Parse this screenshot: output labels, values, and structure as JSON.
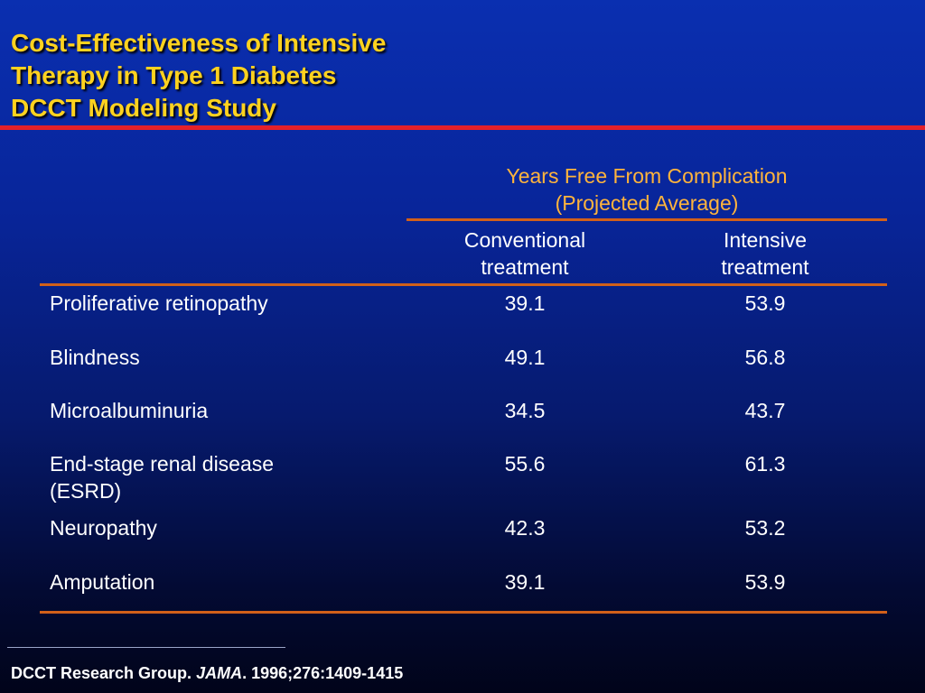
{
  "title": {
    "lines": [
      "Cost-Effectiveness of Intensive",
      "Therapy in Type 1 Diabetes",
      "DCCT Modeling Study"
    ]
  },
  "table": {
    "group_header": {
      "line1": "Years Free From Complication",
      "line2": "(Projected Average)"
    },
    "columns": [
      {
        "line1": "Conventional",
        "line2": "treatment"
      },
      {
        "line1": "Intensive",
        "line2": "treatment"
      }
    ],
    "rows": [
      {
        "label": [
          "Proliferative retinopathy"
        ],
        "values": [
          "39.1",
          "53.9"
        ]
      },
      {
        "label": [
          "Blindness"
        ],
        "values": [
          "49.1",
          "56.8"
        ]
      },
      {
        "label": [
          "Microalbuminuria"
        ],
        "values": [
          "34.5",
          "43.7"
        ]
      },
      {
        "label": [
          "End-stage renal disease",
          "(ESRD)"
        ],
        "values": [
          "55.6",
          "61.3"
        ]
      },
      {
        "label": [
          "Neuropathy"
        ],
        "values": [
          "42.3",
          "53.2"
        ]
      },
      {
        "label": [
          "Amputation"
        ],
        "values": [
          "39.1",
          "53.9"
        ]
      }
    ]
  },
  "citation": {
    "authors": "DCCT Research Group.",
    "journal": "JAMA",
    "details": ". 1996;276:1409-1415"
  },
  "colors": {
    "title": "#ffd21f",
    "group_header": "#ffb43c",
    "rule": "#d2601a",
    "red_rule": "#e5202a",
    "text": "#ffffff"
  }
}
